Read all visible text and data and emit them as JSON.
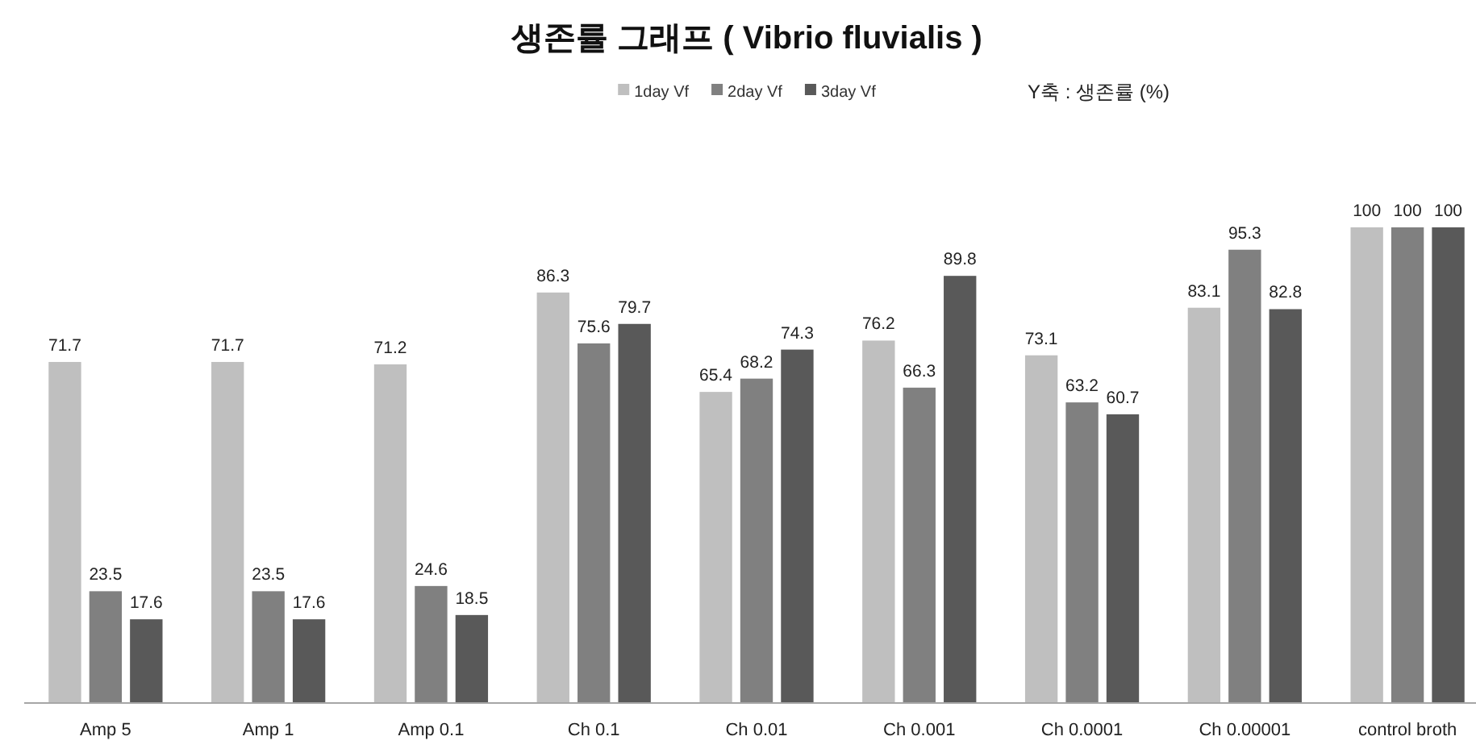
{
  "chart_data": {
    "type": "bar",
    "title": "생존률 그래프 ( Vibrio fluvialis )",
    "annotations": [
      "Y축 : 생존률 (%)"
    ],
    "categories": [
      "Amp 5",
      "Amp 1",
      "Amp 0.1",
      "Ch 0.1",
      "Ch 0.01",
      "Ch 0.001",
      "Ch 0.0001",
      "Ch 0.00001",
      "control broth"
    ],
    "series": [
      {
        "name": "1day Vf",
        "color": "#bfbfbf",
        "values": [
          71.7,
          71.7,
          71.2,
          86.3,
          65.4,
          76.2,
          73.1,
          83.1,
          100
        ]
      },
      {
        "name": "2day Vf",
        "color": "#808080",
        "values": [
          23.5,
          23.5,
          24.6,
          75.6,
          68.2,
          66.3,
          63.2,
          95.3,
          100
        ]
      },
      {
        "name": "3day Vf",
        "color": "#595959",
        "values": [
          17.6,
          17.6,
          18.5,
          79.7,
          74.3,
          89.8,
          60.7,
          82.8,
          100
        ]
      }
    ],
    "data_labels": true,
    "legend": "top"
  }
}
